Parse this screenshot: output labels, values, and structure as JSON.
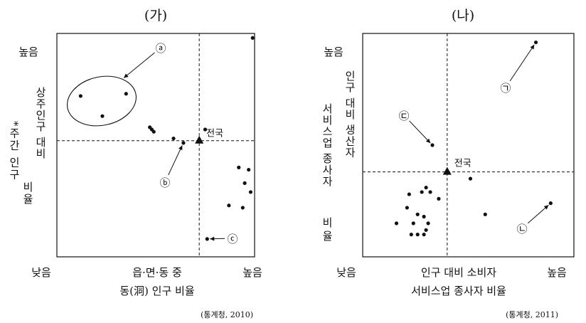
{
  "chart_data": [
    {
      "type": "scatter",
      "title": "(가)",
      "xlabel": [
        "읍·면·동 중",
        "동(洞) 인구 비율"
      ],
      "ylabel": [
        "*주간 인구",
        "상주인구 대비",
        "비율"
      ],
      "x_low": "낮음",
      "x_high": "높음",
      "y_low": "낮음",
      "y_high": "높음",
      "source": "(통계청, 2010)",
      "xlim": [
        0,
        100
      ],
      "ylim": [
        0,
        100
      ],
      "national": {
        "label": "전국",
        "x": 72,
        "y": 52
      },
      "points": [
        {
          "x": 12,
          "y": 72
        },
        {
          "x": 23,
          "y": 63
        },
        {
          "x": 35,
          "y": 73
        },
        {
          "x": 47,
          "y": 58
        },
        {
          "x": 48,
          "y": 57
        },
        {
          "x": 49,
          "y": 56
        },
        {
          "x": 59,
          "y": 53
        },
        {
          "x": 64,
          "y": 51
        },
        {
          "x": 75,
          "y": 57
        },
        {
          "x": 99,
          "y": 98
        },
        {
          "x": 92,
          "y": 40
        },
        {
          "x": 97,
          "y": 39
        },
        {
          "x": 95,
          "y": 33
        },
        {
          "x": 98,
          "y": 29
        },
        {
          "x": 87,
          "y": 23
        },
        {
          "x": 94,
          "y": 22
        },
        {
          "x": 76,
          "y": 8
        }
      ],
      "annotations": [
        {
          "mark": "ⓐ",
          "target": {
            "x": 26,
            "y": 72
          }
        },
        {
          "mark": "ⓑ",
          "target": {
            "x": 64,
            "y": 51
          }
        },
        {
          "mark": "ⓒ",
          "target": {
            "x": 76,
            "y": 8
          }
        }
      ]
    },
    {
      "type": "scatter",
      "title": "(나)",
      "xlabel": [
        "인구 대비  소비자",
        "서비스업 종사자 비율"
      ],
      "ylabel": [
        "인구 대비 생산자",
        "서비스업 종사자",
        "비율"
      ],
      "x_low": "낮음",
      "x_high": "높음",
      "y_low": "낮음",
      "y_high": "높음",
      "source": "(통계청, 2011)",
      "xlim": [
        0,
        100
      ],
      "ylim": [
        0,
        100
      ],
      "national": {
        "label": "전국",
        "x": 40,
        "y": 38
      },
      "points": [
        {
          "x": 82,
          "y": 96
        },
        {
          "x": 33,
          "y": 50
        },
        {
          "x": 51,
          "y": 35
        },
        {
          "x": 58,
          "y": 19
        },
        {
          "x": 89,
          "y": 24
        },
        {
          "x": 22,
          "y": 28
        },
        {
          "x": 28,
          "y": 29
        },
        {
          "x": 30,
          "y": 31
        },
        {
          "x": 32,
          "y": 29
        },
        {
          "x": 36,
          "y": 26
        },
        {
          "x": 21,
          "y": 22
        },
        {
          "x": 26,
          "y": 19
        },
        {
          "x": 29,
          "y": 18
        },
        {
          "x": 16,
          "y": 15
        },
        {
          "x": 24,
          "y": 15
        },
        {
          "x": 31,
          "y": 15
        },
        {
          "x": 30,
          "y": 12
        },
        {
          "x": 23,
          "y": 10
        },
        {
          "x": 26,
          "y": 10
        },
        {
          "x": 29,
          "y": 10
        }
      ],
      "annotations": [
        {
          "mark": "㉠",
          "target": {
            "x": 82,
            "y": 96
          }
        },
        {
          "mark": "㉡",
          "target": {
            "x": 89,
            "y": 24
          }
        },
        {
          "mark": "㉢",
          "target": {
            "x": 33,
            "y": 50
          }
        }
      ]
    }
  ]
}
